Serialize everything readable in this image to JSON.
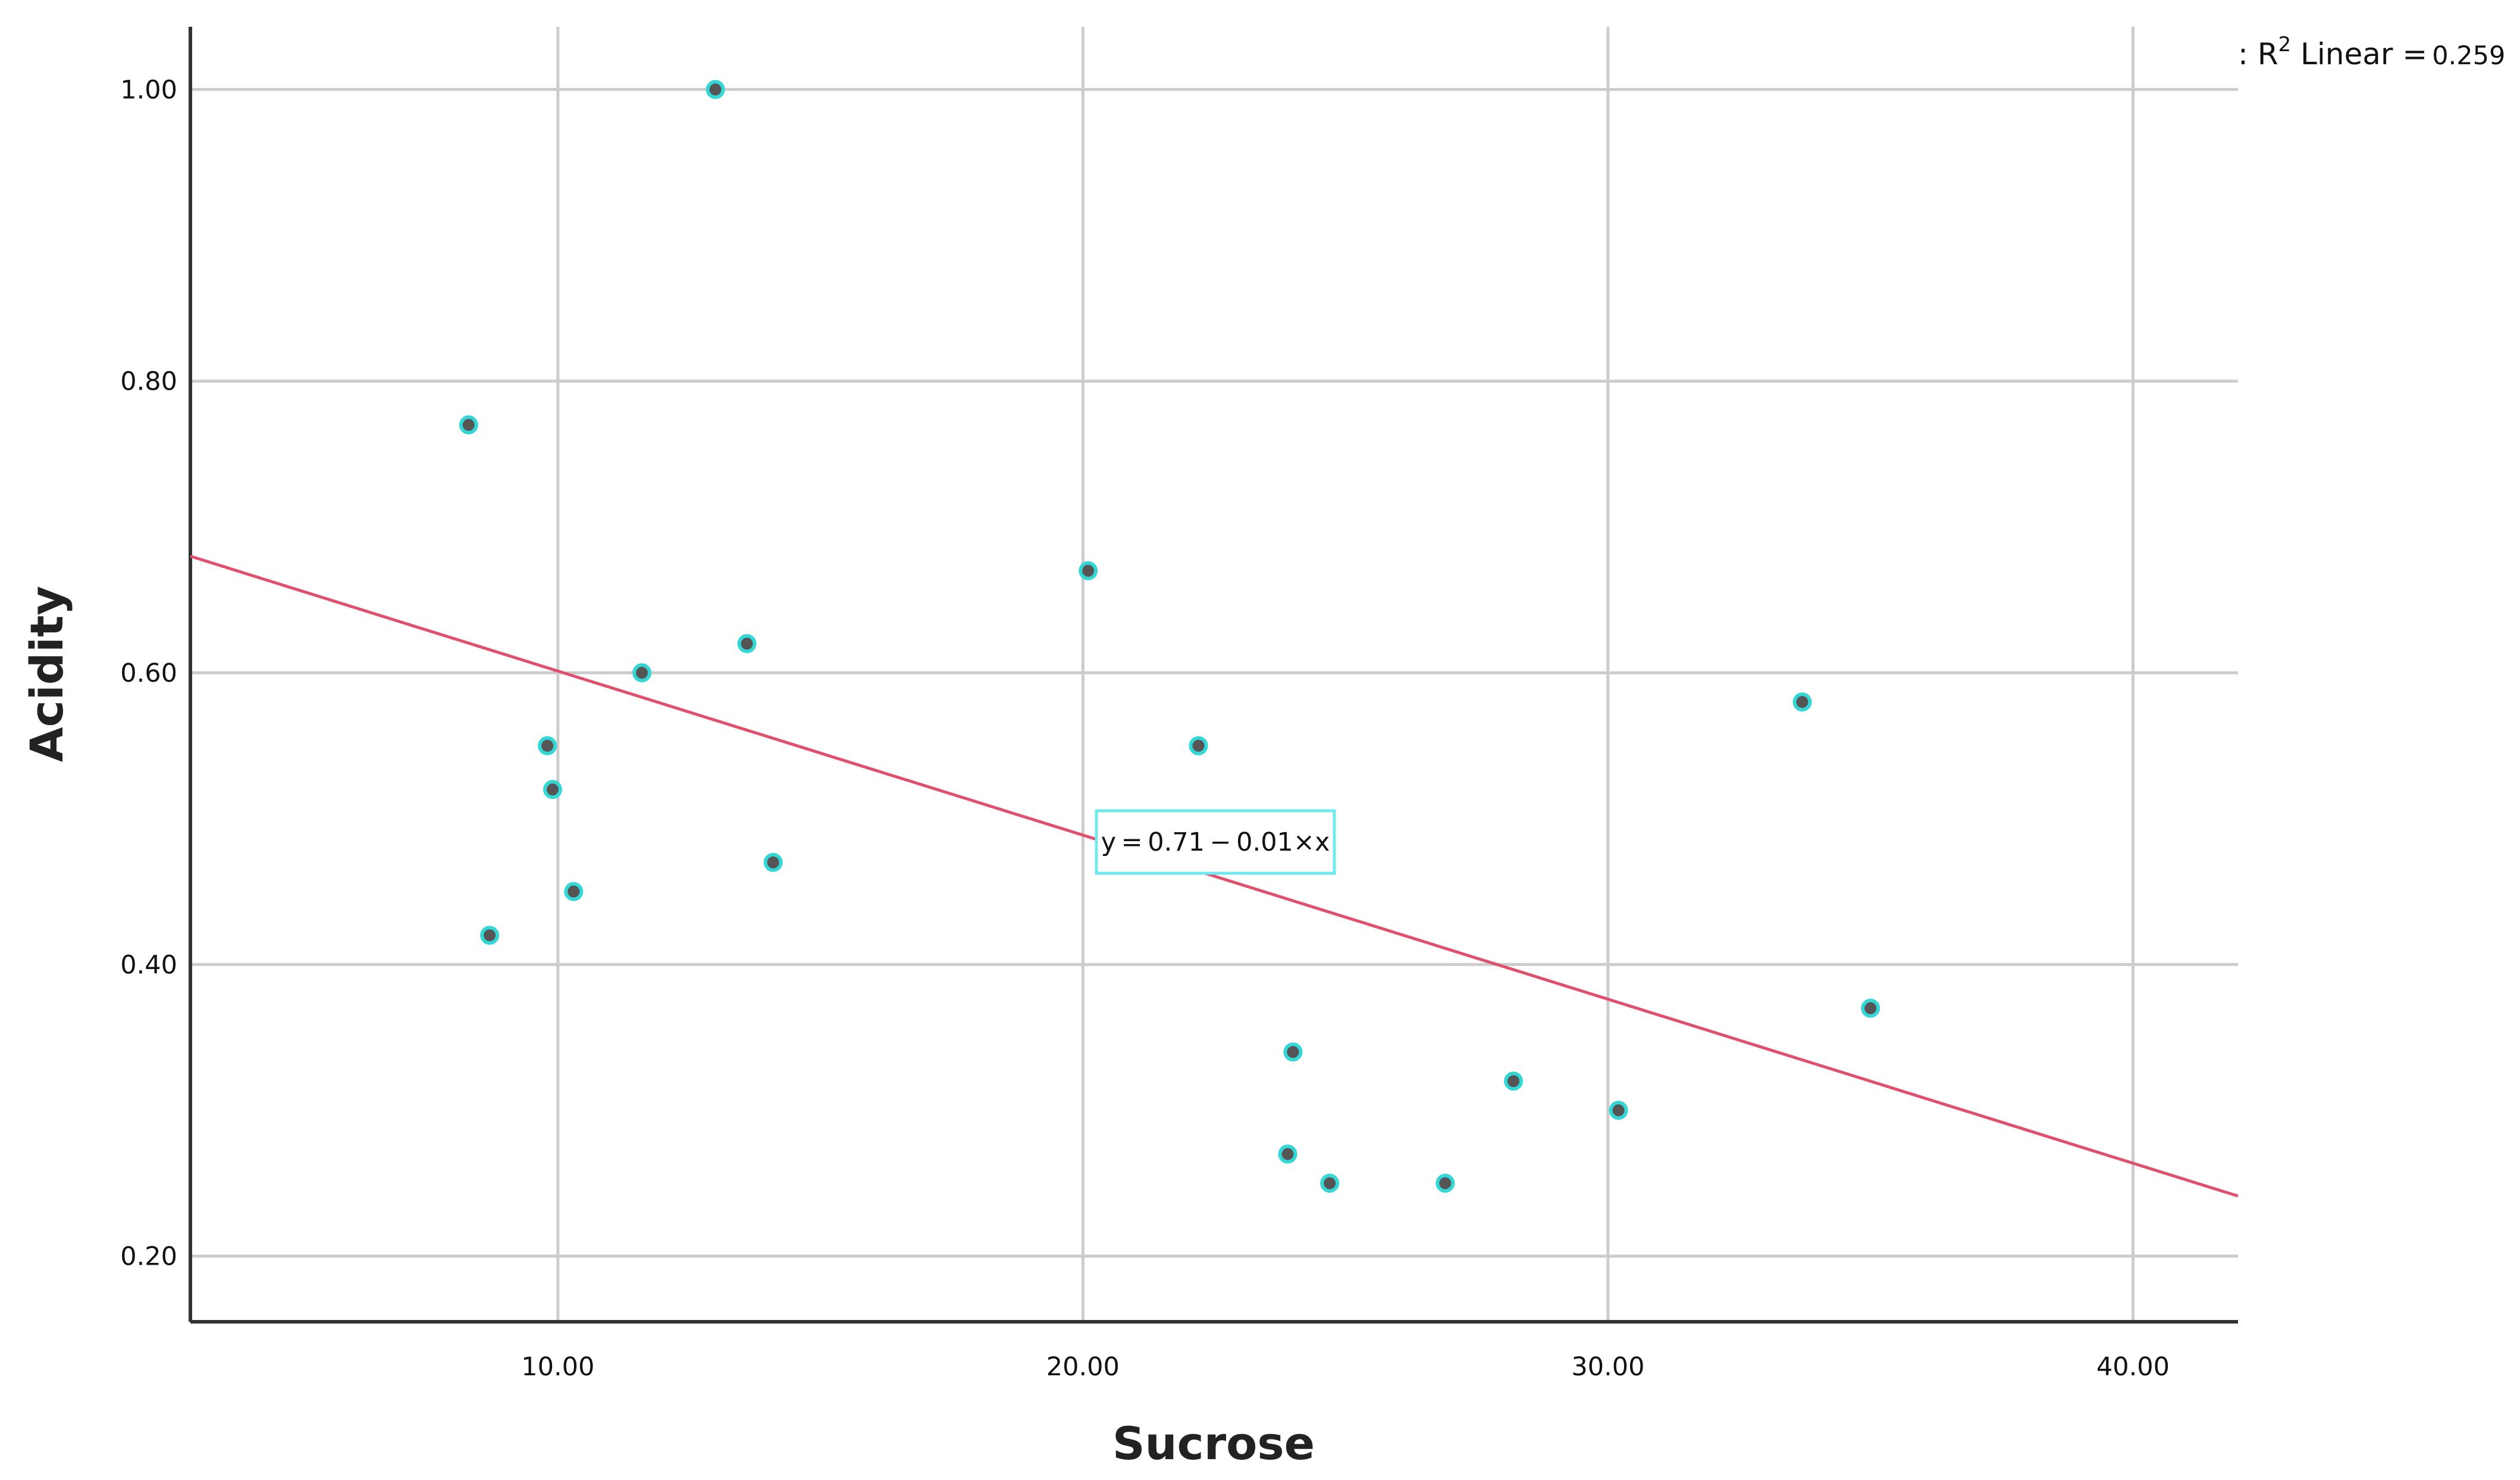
{
  "chart_data": {
    "type": "scatter",
    "xlabel": "Sucrose",
    "ylabel": "Acidity",
    "xlim": [
      3.0,
      42.0
    ],
    "ylim": [
      0.155,
      1.043
    ],
    "x_ticks": [
      10.0,
      20.0,
      30.0,
      40.0
    ],
    "x_tick_labels": [
      "10.00",
      "20.00",
      "30.00",
      "40.00"
    ],
    "y_ticks": [
      0.2,
      0.4,
      0.6,
      0.8,
      1.0
    ],
    "y_tick_labels": [
      "0.20",
      "0.40",
      "0.60",
      "0.80",
      "1.00"
    ],
    "grid": true,
    "points": [
      {
        "x": 8.3,
        "y": 0.77
      },
      {
        "x": 8.7,
        "y": 0.42
      },
      {
        "x": 9.8,
        "y": 0.55
      },
      {
        "x": 9.9,
        "y": 0.52
      },
      {
        "x": 10.3,
        "y": 0.45
      },
      {
        "x": 11.6,
        "y": 0.6
      },
      {
        "x": 13.0,
        "y": 1.0
      },
      {
        "x": 13.6,
        "y": 0.62
      },
      {
        "x": 14.1,
        "y": 0.47
      },
      {
        "x": 20.1,
        "y": 0.67
      },
      {
        "x": 22.2,
        "y": 0.55
      },
      {
        "x": 23.9,
        "y": 0.27
      },
      {
        "x": 24.0,
        "y": 0.34
      },
      {
        "x": 24.7,
        "y": 0.25
      },
      {
        "x": 26.9,
        "y": 0.25
      },
      {
        "x": 28.2,
        "y": 0.32
      },
      {
        "x": 30.2,
        "y": 0.3
      },
      {
        "x": 33.7,
        "y": 0.58
      },
      {
        "x": 35.0,
        "y": 0.37
      }
    ],
    "fit_line": {
      "intercept": 0.7137,
      "slope": -0.01125,
      "equation_label": "y = 0.71 − 0.01×x",
      "color": "#e0506e"
    },
    "legend": {
      "prefix": ": R",
      "superscript": "2",
      "label": " Linear =",
      "value": "0.259",
      "placement": "top-right"
    },
    "colors": {
      "marker_fill": "#555555",
      "marker_edge": "#35d6d6",
      "grid": "#cccccc",
      "axis": "#333333",
      "equation_box": "#6fe8ee"
    }
  }
}
